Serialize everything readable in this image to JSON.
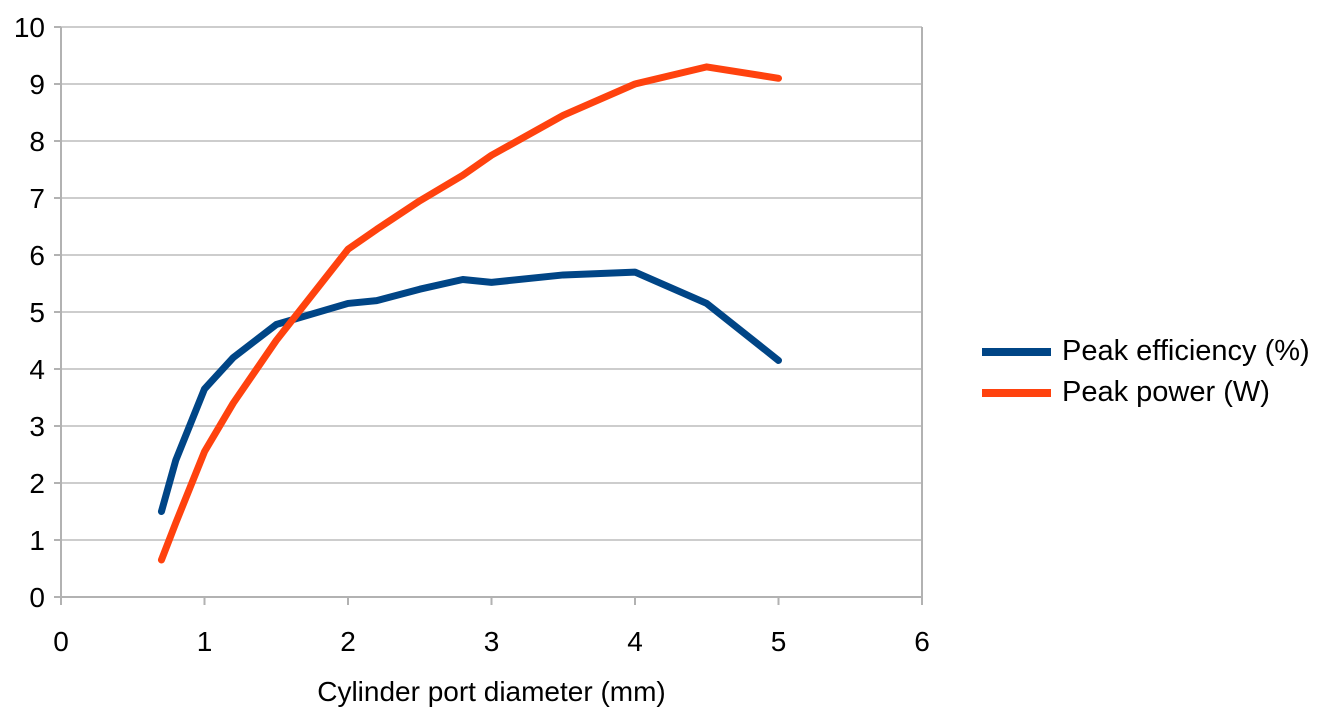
{
  "chart_data": {
    "type": "line",
    "xlabel": "Cylinder port diameter (mm)",
    "x": [
      0.7,
      0.8,
      1.0,
      1.2,
      1.5,
      2.0,
      2.2,
      2.5,
      2.8,
      3.0,
      3.5,
      4.0,
      4.5,
      5.0
    ],
    "series": [
      {
        "name": "Peak efficiency (%)",
        "color": "#004586",
        "values": [
          1.5,
          2.4,
          3.65,
          4.2,
          4.78,
          5.15,
          5.2,
          5.4,
          5.57,
          5.52,
          5.65,
          5.7,
          5.15,
          4.15
        ]
      },
      {
        "name": "Peak power (W)",
        "color": "#FF420E",
        "values": [
          0.65,
          1.3,
          2.55,
          3.4,
          4.5,
          6.1,
          6.45,
          6.95,
          7.4,
          7.75,
          8.45,
          9.0,
          9.3,
          9.1
        ]
      }
    ],
    "xlim": [
      0,
      6
    ],
    "ylim": [
      0,
      10
    ],
    "x_ticks": [
      0,
      1,
      2,
      3,
      4,
      5,
      6
    ],
    "y_ticks": [
      0,
      1,
      2,
      3,
      4,
      5,
      6,
      7,
      8,
      9,
      10
    ],
    "grid": "horizontal-only",
    "grid_color": "#cdcdcd",
    "axis_color": "#b2b2b2",
    "text_color": "#000000",
    "background": "#ffffff",
    "legend_position": "right-middle"
  }
}
